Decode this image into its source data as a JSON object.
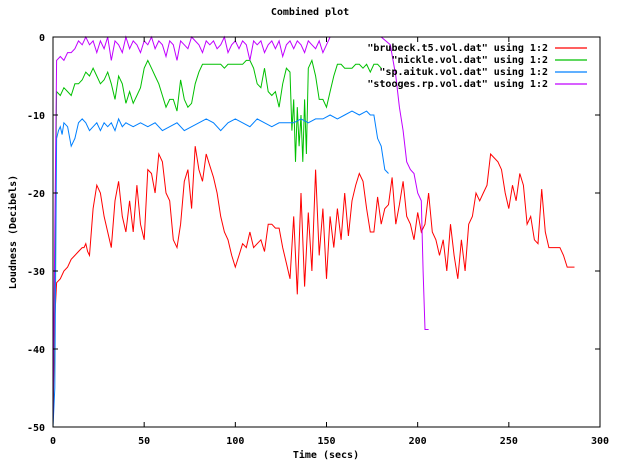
{
  "chart_data": {
    "type": "line",
    "title": "Combined plot",
    "xlabel": "Time (secs)",
    "ylabel": "Loudness (Decibels)",
    "xlim": [
      0,
      300
    ],
    "ylim": [
      -50,
      0
    ],
    "xticks": [
      0,
      50,
      100,
      150,
      200,
      250,
      300
    ],
    "yticks": [
      0,
      -10,
      -20,
      -30,
      -40,
      -50
    ],
    "grid": false,
    "legend_position": "top-right",
    "series": [
      {
        "name": "\"brubeck.t5.vol.dat\" using 1:2",
        "color": "#ff0000",
        "x": [
          0,
          1,
          2,
          4,
          6,
          8,
          10,
          12,
          14,
          16,
          17,
          18,
          19,
          20,
          22,
          24,
          26,
          28,
          30,
          32,
          34,
          36,
          38,
          40,
          42,
          44,
          46,
          48,
          50,
          52,
          54,
          56,
          58,
          60,
          62,
          64,
          66,
          68,
          70,
          72,
          74,
          76,
          78,
          80,
          82,
          84,
          86,
          88,
          90,
          92,
          94,
          96,
          98,
          100,
          102,
          104,
          106,
          108,
          110,
          112,
          114,
          116,
          118,
          120,
          122,
          124,
          126,
          128,
          130,
          132,
          134,
          136,
          138,
          140,
          142,
          144,
          146,
          148,
          150,
          152,
          154,
          156,
          158,
          160,
          162,
          164,
          166,
          168,
          170,
          172,
          174,
          176,
          178,
          180,
          182,
          184,
          186,
          188,
          190,
          192,
          194,
          196,
          198,
          200,
          202,
          204,
          206,
          208,
          210,
          212,
          214,
          216,
          218,
          220,
          222,
          224,
          226,
          228,
          230,
          232,
          234,
          236,
          238,
          240,
          242,
          244,
          246,
          248,
          250,
          252,
          254,
          256,
          258,
          260,
          262,
          264,
          266,
          268,
          270,
          272,
          274,
          276,
          278,
          280,
          282,
          284,
          286
        ],
        "values": [
          -49,
          -36,
          -31.5,
          -31,
          -30,
          -29.5,
          -28.5,
          -28,
          -27.5,
          -27,
          -27,
          -26.5,
          -27.5,
          -28,
          -22,
          -19,
          -20,
          -23,
          -25,
          -27,
          -21,
          -18.5,
          -23,
          -25,
          -21,
          -25,
          -19,
          -24,
          -26,
          -17,
          -17.5,
          -20,
          -15,
          -16,
          -20,
          -21,
          -26,
          -27,
          -24,
          -18.5,
          -17,
          -22,
          -14,
          -17,
          -18.5,
          -15,
          -16.5,
          -18,
          -20,
          -23,
          -25,
          -26,
          -28,
          -29.5,
          -28,
          -26.5,
          -27,
          -25,
          -27,
          -26.5,
          -26,
          -27.5,
          -24,
          -24,
          -24.5,
          -24.5,
          -27,
          -29,
          -31,
          -23,
          -33,
          -20,
          -32,
          -22.5,
          -30,
          -17,
          -28,
          -22,
          -31,
          -23,
          -27,
          -22,
          -26,
          -20,
          -25.5,
          -21,
          -19,
          -17.5,
          -18.5,
          -22,
          -25,
          -25,
          -20.5,
          -24,
          -22,
          -21.5,
          -18,
          -24,
          -21.5,
          -18.5,
          -23,
          -24,
          -26,
          -22.5,
          -25,
          -24,
          -20,
          -25,
          -26,
          -28,
          -26,
          -30,
          -24,
          -28,
          -31,
          -26,
          -30,
          -24,
          -23,
          -20,
          -21,
          -20,
          -19,
          -15,
          -15.5,
          -16,
          -17,
          -20,
          -22,
          -19,
          -21,
          -17.5,
          -19,
          -24,
          -23,
          -26,
          -26.5,
          -19.5,
          -25,
          -27,
          -27,
          -27,
          -27,
          -28,
          -29.5,
          -29.5,
          -29.5
        ]
      },
      {
        "name": "\"nickle.vol.dat\" using 1:2",
        "color": "#00c000",
        "x": [
          0,
          1,
          2,
          4,
          6,
          8,
          10,
          12,
          14,
          16,
          18,
          20,
          22,
          24,
          26,
          28,
          30,
          32,
          34,
          36,
          38,
          40,
          42,
          44,
          46,
          48,
          50,
          52,
          54,
          56,
          58,
          60,
          62,
          64,
          66,
          68,
          70,
          72,
          74,
          76,
          78,
          80,
          82,
          84,
          86,
          88,
          90,
          92,
          94,
          96,
          98,
          100,
          102,
          104,
          106,
          108,
          110,
          112,
          114,
          116,
          118,
          120,
          122,
          124,
          126,
          128,
          130,
          131,
          132,
          133,
          134,
          135,
          136,
          137,
          138,
          139,
          140,
          142,
          144,
          146,
          148,
          150,
          152,
          154,
          156,
          158,
          160,
          162,
          164,
          166,
          168,
          170,
          172,
          174,
          176,
          178,
          180
        ],
        "values": [
          -50,
          -30,
          -7,
          -7.5,
          -6.5,
          -7,
          -7.5,
          -6,
          -6,
          -5.5,
          -4.5,
          -5,
          -4,
          -5,
          -6,
          -5.5,
          -4.5,
          -6,
          -8,
          -5,
          -6,
          -8.5,
          -7,
          -8.5,
          -7.5,
          -6.5,
          -4,
          -3,
          -4,
          -5,
          -6,
          -7.5,
          -9,
          -8,
          -8,
          -9.5,
          -5.5,
          -8,
          -9,
          -8.5,
          -6,
          -4.5,
          -3.5,
          -3.5,
          -3.5,
          -3.5,
          -3.5,
          -3.5,
          -4,
          -3.5,
          -3.5,
          -3.5,
          -3.5,
          -3.5,
          -3,
          -3,
          -4,
          -6,
          -6.5,
          -4,
          -7,
          -7.5,
          -7,
          -9,
          -6,
          -4,
          -4.5,
          -12,
          -8,
          -16,
          -9,
          -14,
          -10,
          -16,
          -8,
          -15,
          -4,
          -3,
          -5,
          -8,
          -8,
          -9,
          -7,
          -5,
          -3.5,
          -3.5,
          -4,
          -4,
          -4,
          -3.5,
          -3.5,
          -4,
          -3.5,
          -4.5,
          -3.5,
          -3.5,
          -4
        ]
      },
      {
        "name": "\"sp.aituk.vol.dat\" using 1:2",
        "color": "#0080ff",
        "x": [
          0,
          1,
          2,
          3,
          4,
          5,
          6,
          8,
          10,
          12,
          14,
          16,
          18,
          20,
          22,
          24,
          26,
          28,
          30,
          32,
          34,
          36,
          38,
          40,
          44,
          48,
          52,
          56,
          60,
          64,
          68,
          72,
          76,
          80,
          84,
          88,
          92,
          96,
          100,
          104,
          108,
          112,
          116,
          120,
          124,
          128,
          132,
          136,
          140,
          144,
          148,
          152,
          156,
          160,
          164,
          168,
          172,
          174,
          176,
          178,
          180,
          182,
          184
        ],
        "values": [
          -50,
          -45,
          -13,
          -12,
          -11.5,
          -12.5,
          -11,
          -11.5,
          -14,
          -13,
          -11,
          -10.5,
          -11,
          -12,
          -11.5,
          -11,
          -12,
          -11,
          -11.5,
          -11,
          -12,
          -10.5,
          -11.5,
          -11,
          -11.5,
          -11,
          -11.5,
          -11,
          -12,
          -11.5,
          -11,
          -12,
          -11.5,
          -11,
          -10.5,
          -11,
          -12,
          -11,
          -10.5,
          -11,
          -11.5,
          -10.5,
          -11,
          -11.5,
          -11,
          -11,
          -11,
          -10.5,
          -11,
          -10.5,
          -10.5,
          -10,
          -10.5,
          -10,
          -9.5,
          -10,
          -9.5,
          -10,
          -10,
          -13,
          -14,
          -17,
          -17.5
        ]
      },
      {
        "name": "\"stooges.rp.vol.dat\" using 1:2",
        "color": "#c000ff",
        "x": [
          0,
          1,
          2,
          4,
          6,
          8,
          10,
          12,
          14,
          16,
          18,
          20,
          22,
          24,
          26,
          28,
          30,
          32,
          34,
          36,
          38,
          40,
          42,
          44,
          46,
          48,
          50,
          52,
          54,
          56,
          58,
          60,
          62,
          64,
          66,
          68,
          70,
          72,
          74,
          76,
          78,
          80,
          82,
          84,
          86,
          88,
          90,
          92,
          94,
          96,
          98,
          100,
          102,
          104,
          106,
          108,
          110,
          112,
          114,
          116,
          118,
          120,
          122,
          124,
          126,
          128,
          130,
          132,
          134,
          136,
          138,
          140,
          142,
          144,
          146,
          148,
          150,
          152,
          160,
          170,
          180,
          185,
          188,
          190,
          192,
          194,
          196,
          198,
          200,
          202,
          203,
          204,
          206
        ],
        "values": [
          -50,
          -25,
          -3,
          -2.5,
          -3,
          -2,
          -2,
          -1.5,
          -0.5,
          -1,
          0,
          -1,
          -0.5,
          -2,
          -0.5,
          -1.5,
          0,
          -3,
          -0.5,
          -1,
          -2,
          0,
          -1.5,
          -0.5,
          -1,
          -2,
          -0.5,
          -1,
          0,
          -1.5,
          -0.5,
          -1,
          -2.5,
          -0.5,
          -1,
          -3,
          -0.5,
          -1,
          -1.5,
          0,
          -0.5,
          -1,
          -2,
          -0.5,
          -1,
          -0.5,
          -1.5,
          -1,
          0,
          -2,
          -1,
          -0.5,
          -1.5,
          -0.5,
          -1,
          -3,
          -0.5,
          -1,
          -0.5,
          -2,
          -1,
          -0.5,
          -1.5,
          -0.5,
          -2.5,
          -1,
          -0.5,
          -1.5,
          -0.5,
          -1,
          -2,
          -0.5,
          -1,
          -1.5,
          -0.5,
          -2,
          -1,
          0,
          0,
          0,
          0,
          -1,
          -5,
          -9,
          -12,
          -16,
          -17,
          -17.5,
          -20,
          -21,
          -30,
          -37.5,
          -37.5
        ]
      }
    ]
  },
  "title": "Combined plot",
  "axes": {
    "xlabel": "Time (secs)",
    "ylabel": "Loudness (Decibels)",
    "xticks": [
      "0",
      "50",
      "100",
      "150",
      "200",
      "250",
      "300"
    ],
    "yticks": [
      "0",
      "-10",
      "-20",
      "-30",
      "-40",
      "-50"
    ]
  },
  "legend": [
    {
      "label": "\"brubeck.t5.vol.dat\" using 1:2",
      "color": "#ff0000"
    },
    {
      "label": "\"nickle.vol.dat\" using 1:2",
      "color": "#00c000"
    },
    {
      "label": "\"sp.aituk.vol.dat\" using 1:2",
      "color": "#0080ff"
    },
    {
      "label": "\"stooges.rp.vol.dat\" using 1:2",
      "color": "#c000ff"
    }
  ]
}
